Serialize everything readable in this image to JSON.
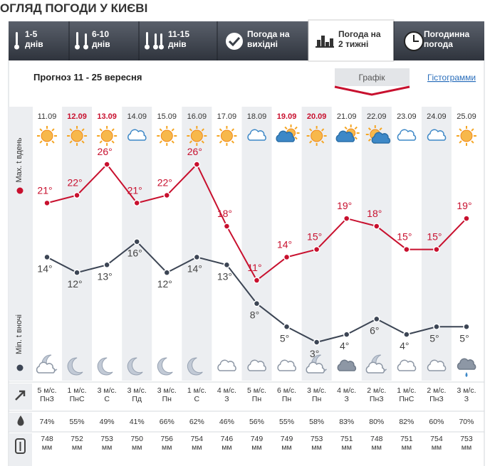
{
  "header": {
    "title": "ОГЛЯД ПОГОДИ У КИЄВІ"
  },
  "tabs": [
    {
      "label": "1-5\nднів"
    },
    {
      "label": "6-10\nднів"
    },
    {
      "label": "11-15\nднів"
    },
    {
      "label": "Погода на\nвихідні"
    },
    {
      "label": "Погода на\n2 тижні",
      "active": true
    },
    {
      "label": "Погодинна\nпогода"
    }
  ],
  "forecast": {
    "title": "Прогноз 11 - 25 вересня",
    "views": [
      {
        "label": "Графік",
        "active": true
      },
      {
        "label": "Гістограмми"
      }
    ]
  },
  "chart_data": {
    "type": "line",
    "categories": [
      "11.09",
      "12.09",
      "13.09",
      "14.09",
      "15.09",
      "16.09",
      "17.09",
      "18.09",
      "19.09",
      "20.09",
      "21.09",
      "22.09",
      "23.09",
      "24.09",
      "25.09"
    ],
    "category_colors": [
      "#333",
      "#c8102e",
      "#c8102e",
      "#333",
      "#333",
      "#333",
      "#333",
      "#333",
      "#c8102e",
      "#c8102e",
      "#333",
      "#333",
      "#333",
      "#333",
      "#333"
    ],
    "series": [
      {
        "name": "Max. t вдень",
        "color": "#c8102e",
        "values": [
          21,
          22,
          26,
          21,
          22,
          26,
          18,
          11,
          14,
          15,
          19,
          18,
          15,
          15,
          19
        ],
        "value_labels": [
          "21°",
          "22°",
          "26°",
          "21°",
          "22°",
          "26°",
          "18°",
          "11°",
          "14°",
          "15°",
          "19°",
          "18°",
          "15°",
          "15°",
          "19°"
        ]
      },
      {
        "name": "Min. t вночі",
        "color": "#3c4554",
        "values": [
          14,
          12,
          13,
          16,
          12,
          14,
          13,
          8,
          5,
          3,
          4,
          6,
          4,
          5,
          5
        ],
        "value_labels": [
          "14°",
          "12°",
          "13°",
          "16°",
          "12°",
          "14°",
          "13°",
          "8°",
          "5°",
          "3°",
          "4°",
          "6°",
          "4°",
          "5°",
          "5°"
        ]
      }
    ]
  },
  "table": {
    "wind": [
      "5 м/с.\nПнЗ",
      "1 м/с.\nПнС",
      "3 м/с.\nС",
      "3 м/с.\nПд",
      "3 м/с.\nПн",
      "1 м/с.\nС",
      "4 м/с.\nЗ",
      "5 м/с.\nПн",
      "6 м/с.\nПн",
      "3 м/с.\nПн",
      "4 м/с.\nЗ",
      "2 м/с.\nПнЗ",
      "1 м/с.\nПнС",
      "2 м/с.\nПнЗ",
      "3 м/с.\nЗ"
    ],
    "humidity": [
      "74%",
      "55%",
      "49%",
      "41%",
      "66%",
      "62%",
      "46%",
      "56%",
      "55%",
      "58%",
      "83%",
      "80%",
      "82%",
      "60%",
      "70%"
    ],
    "pressure": [
      "748\nмм",
      "752\nмм",
      "753\nмм",
      "750\nмм",
      "756\nмм",
      "754\nмм",
      "746\nмм",
      "749\nмм",
      "749\nмм",
      "753\nмм",
      "751\nмм",
      "748\nмм",
      "751\nмм",
      "754\nмм",
      "753\nмм"
    ]
  }
}
